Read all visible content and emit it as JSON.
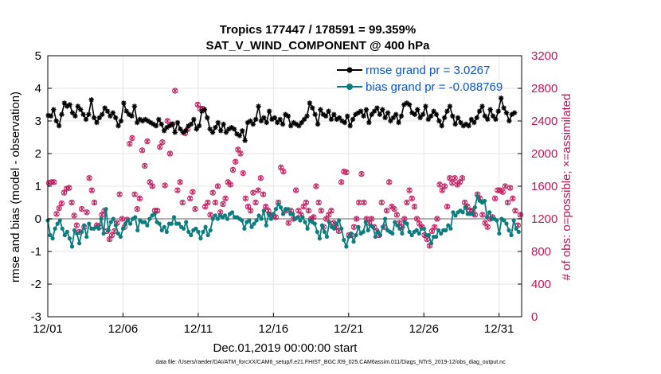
{
  "chart_data": {
    "type": "line",
    "title": "Tropics 177447 / 178591 = 99.359%",
    "subtitle": "SAT_V_WIND_COMPONENT @ 400 hPa",
    "xlabel": "Dec.01,2019 00:00:00 start",
    "ylabel": "rmse and bias (model - observation)",
    "y2label": "# of obs: o=possible; ×=assimilated",
    "footnote": "data file: /Users/raeder/DAI/ATM_forcXX/CAM6_setup/f.e21.FHIST_BGC.f09_025.CAM6assim.011/Diags_NTrS_2019-12/obs_diag_output.nc",
    "x_range": [
      0,
      31.5
    ],
    "xticks": [
      0,
      5,
      10,
      15,
      20,
      25,
      30
    ],
    "xtick_labels": [
      "12/01",
      "12/06",
      "12/11",
      "12/16",
      "12/21",
      "12/26",
      "12/31"
    ],
    "ylim": [
      -3,
      5
    ],
    "yticks": [
      -3,
      -2,
      -1,
      0,
      1,
      2,
      3,
      4,
      5
    ],
    "y2lim": [
      0,
      3200
    ],
    "y2ticks": [
      0,
      400,
      800,
      1200,
      1600,
      2000,
      2400,
      2800,
      3200
    ],
    "grid": true,
    "legend_position": "top-right",
    "series": [
      {
        "name": "rmse grand pr = 3.0267",
        "color": "#000000",
        "axis": "left",
        "values": [
          3.17,
          3.15,
          3.35,
          3.0,
          2.85,
          3.2,
          3.55,
          3.45,
          3.5,
          3.25,
          3.15,
          3.45,
          3.35,
          3.2,
          3.05,
          3.2,
          3.65,
          3.1,
          2.95,
          3.1,
          3.2,
          3.4,
          3.3,
          3.15,
          3.25,
          3.1,
          2.85,
          3.0,
          3.55,
          3.3,
          3.2,
          3.15,
          3.45,
          2.95,
          3.05,
          3.0,
          3.05,
          3.0,
          2.95,
          2.9,
          2.85,
          3.05,
          2.9,
          2.7,
          2.8,
          2.85,
          2.9,
          2.65,
          2.95,
          2.75,
          2.65,
          2.7,
          2.85,
          2.9,
          3.05,
          2.75,
          2.85,
          3.3,
          3.35,
          3.1,
          2.75,
          2.65,
          2.8,
          2.95,
          2.7,
          2.9,
          2.65,
          2.75,
          2.8,
          2.75,
          2.6,
          2.55,
          2.7,
          2.4,
          2.95,
          3.0,
          2.9,
          3.05,
          3.45,
          3.0,
          3.1,
          2.95,
          3.3,
          3.05,
          3.1,
          2.95,
          3.05,
          2.9,
          3.2,
          3.15,
          2.85,
          2.95,
          2.9,
          2.85,
          2.95,
          3.05,
          3.15,
          3.55,
          3.4,
          3.2,
          2.9,
          3.35,
          3.2,
          3.15,
          3.3,
          3.05,
          3.2,
          3.05,
          3.1,
          3.0,
          2.95,
          3.15,
          2.85,
          3.05,
          3.2,
          3.25,
          3.3,
          3.15,
          3.35,
          2.95,
          3.2,
          3.3,
          3.4,
          3.2,
          3.35,
          3.1,
          3.25,
          3.0,
          3.1,
          3.2,
          2.95,
          3.15,
          3.5,
          3.55,
          3.5,
          3.25,
          3.2,
          3.35,
          3.1,
          3.2,
          3.45,
          3.05,
          3.15,
          3.3,
          3.2,
          3.0,
          2.85,
          3.1,
          3.3,
          3.45,
          3.15,
          2.9,
          3.1,
          2.95,
          2.85,
          2.9,
          2.85,
          3.05,
          2.95,
          3.1,
          3.3,
          3.45,
          3.15,
          3.05,
          3.35,
          3.15,
          3.05,
          3.3,
          3.7,
          3.4,
          3.25,
          3.0,
          3.2,
          3.25
        ]
      },
      {
        "name": "bias grand pr = -0.088769",
        "color": "#0a7d7f",
        "axis": "left",
        "values": [
          -0.05,
          -0.5,
          -0.6,
          -0.3,
          -0.15,
          -0.05,
          -0.3,
          -0.5,
          -0.4,
          -0.6,
          -0.85,
          -0.35,
          -0.45,
          -0.75,
          -0.4,
          -0.2,
          -0.55,
          -0.15,
          -0.3,
          -0.3,
          -0.25,
          -0.3,
          0.0,
          -0.45,
          0.3,
          -0.35,
          -0.1,
          0.0,
          -0.2,
          -0.45,
          -0.55,
          -0.3,
          -0.15,
          -0.05,
          -0.15,
          0.0,
          0.05,
          -0.35,
          -0.05,
          -0.1,
          -0.1,
          -0.2,
          0.0,
          0.1,
          0.15,
          -0.1,
          -0.15,
          -0.35,
          -0.25,
          -0.4,
          -0.15,
          -0.15,
          0.05,
          -0.15,
          -0.15,
          -0.25,
          -0.3,
          -0.1,
          -0.4,
          -0.5,
          -0.35,
          -0.3,
          -0.4,
          -0.6,
          -0.4,
          -0.25,
          -0.5,
          -0.35,
          0.0,
          0.1,
          0.0,
          0.1,
          0.05,
          0.1,
          0.0,
          0.15,
          0.2,
          0.05,
          0.05,
          0.0,
          -0.05,
          -0.3,
          -0.1,
          -0.05,
          -0.25,
          -0.15,
          -0.05,
          0.1,
          0.0,
          0.25,
          -0.2,
          0.15,
          0.0,
          0.15,
          0.3,
          0.45,
          0.35,
          0.15,
          0.3,
          0.3,
          0.15,
          0.15,
          0.0,
          0.05,
          -0.05,
          0.05,
          -0.1,
          -0.3,
          -0.05,
          -0.1,
          -0.15,
          -0.4,
          -0.6,
          -0.2,
          -0.4,
          -0.55,
          -0.1,
          -0.25,
          -0.3,
          -0.15,
          -0.05,
          -0.3,
          -0.65,
          -0.85,
          -0.55,
          -0.45,
          -0.7,
          -0.5,
          -0.25,
          -0.45,
          -0.4,
          -0.1,
          -0.35,
          -0.2,
          -0.25,
          -0.55,
          -0.4,
          -0.5,
          -0.25,
          0.0,
          -0.35,
          -0.4,
          -0.45,
          -0.1,
          -0.2,
          -0.3,
          -0.45,
          -0.1,
          -0.15,
          -0.4,
          -0.5,
          -0.4,
          -0.35,
          -0.45,
          -0.3,
          -0.3,
          -0.5,
          -0.5,
          -0.75,
          -0.55,
          -0.55,
          -0.35,
          -0.45,
          -0.35,
          -0.35,
          -0.2,
          -0.3,
          0.2,
          0.1,
          0.2,
          0.25,
          0.2,
          0.35,
          0.15,
          0.15,
          0.15,
          0.35,
          0.7,
          0.55,
          0.5,
          0.55,
          0.05,
          0.2,
          0.0,
          0.0,
          -0.05,
          -0.45,
          0.0,
          -0.05,
          -0.15,
          -0.35,
          -0.5,
          -0.05,
          -0.3,
          -0.4
        ]
      },
      {
        "name": "possible",
        "color": "#c0145a",
        "axis": "right",
        "values": [
          1640,
          1650,
          1650,
          1260,
          1330,
          1390,
          1520,
          1570,
          1580,
          1400,
          1240,
          1120,
          1040,
          1320,
          1100,
          1280,
          1700,
          1550,
          1400,
          1120,
          1100,
          1250,
          1300,
          1050,
          950,
          1000,
          1050,
          1150,
          1500,
          1200,
          1100,
          1190,
          2120,
          2190,
          1500,
          1320,
          1450,
          2040,
          1850,
          2150,
          1650,
          1600,
          1300,
          1300,
          2080,
          2140,
          1610,
          2400,
          2000,
          2360,
          2770,
          1550,
          1650,
          1400,
          2250,
          2300,
          1450,
          1530,
          1320,
          2600,
          2550,
          2550,
          1350,
          1400,
          1250,
          1520,
          1400,
          1600,
          1280,
          1380,
          1450,
          1650,
          1620,
          1800,
          1900,
          2050,
          2000,
          1760,
          1450,
          1350,
          1300,
          1520,
          1400,
          1550,
          1700,
          1500,
          1350,
          1300,
          1250,
          1230,
          1220,
          1400,
          1830,
          1780,
          1300,
          1150,
          1300,
          1200,
          1550,
          1300,
          1250,
          1350,
          1400,
          1300,
          1200,
          1220,
          1600,
          1400,
          1300,
          1100,
          1200,
          1250,
          1300,
          1150,
          1100,
          1050,
          1650,
          1780,
          1770,
          1000,
          1000,
          1100,
          1200,
          1400,
          1750,
          1400,
          1200,
          1150,
          1200,
          1100,
          1050,
          1000,
          1400,
          1100,
          1300,
          1650,
          1350,
          1320,
          1250,
          1150,
          1100,
          1200,
          1400,
          1550,
          1450,
          1350,
          1200,
          1140,
          1100,
          1000,
          950,
          870,
          1050,
          1100,
          1200,
          1620,
          1550,
          1600,
          1350,
          1700,
          1640,
          1700,
          1620,
          1650,
          1700,
          1400,
          1350,
          1300,
          1300,
          1250,
          1500,
          1450,
          1250,
          1150,
          1100,
          1200,
          1220,
          1450,
          1550,
          1550,
          1530,
          1600,
          1400,
          1580,
          1450,
          1300,
          1120,
          1250
        ]
      },
      {
        "name": "assimilated",
        "color": "#c0145a",
        "axis": "right",
        "values": [
          1640,
          1650,
          1650,
          1260,
          1330,
          1390,
          1520,
          1570,
          1580,
          1400,
          1240,
          1120,
          1040,
          1320,
          1100,
          1280,
          1700,
          1550,
          1400,
          1120,
          1100,
          1250,
          1300,
          1050,
          950,
          1000,
          1050,
          1150,
          1500,
          1200,
          1100,
          1190,
          2120,
          2190,
          1500,
          1320,
          1450,
          2040,
          1850,
          2150,
          1650,
          1600,
          1300,
          1300,
          2080,
          2140,
          1610,
          2400,
          2000,
          2360,
          2770,
          1550,
          1650,
          1400,
          2250,
          2300,
          1450,
          1530,
          1320,
          2600,
          2550,
          2550,
          1350,
          1400,
          1250,
          1520,
          1400,
          1600,
          1280,
          1380,
          1450,
          1650,
          1620,
          1800,
          1900,
          2050,
          2000,
          1760,
          1450,
          1350,
          1300,
          1520,
          1400,
          1550,
          1700,
          1500,
          1350,
          1300,
          1250,
          1230,
          1220,
          1400,
          1830,
          1780,
          1300,
          1150,
          1300,
          1200,
          1550,
          1300,
          1250,
          1350,
          1400,
          1300,
          1200,
          1220,
          1600,
          1400,
          1300,
          1100,
          1200,
          1250,
          1300,
          1150,
          1100,
          1050,
          1650,
          1780,
          1770,
          1000,
          1000,
          1100,
          1200,
          1400,
          1750,
          1400,
          1200,
          1150,
          1200,
          1100,
          1050,
          1000,
          1400,
          1100,
          1300,
          1650,
          1350,
          1320,
          1250,
          1150,
          1100,
          1200,
          1400,
          1550,
          1450,
          1350,
          1200,
          1140,
          1100,
          1000,
          950,
          870,
          1050,
          1100,
          1200,
          1620,
          1550,
          1600,
          1350,
          1700,
          1640,
          1700,
          1620,
          1650,
          1700,
          1400,
          1350,
          1300,
          1300,
          1250,
          1500,
          1450,
          1250,
          1150,
          1100,
          1200,
          1220,
          1450,
          1550,
          1550,
          1530,
          1600,
          1400,
          1580,
          1450,
          1300,
          1120,
          1250
        ]
      }
    ]
  }
}
